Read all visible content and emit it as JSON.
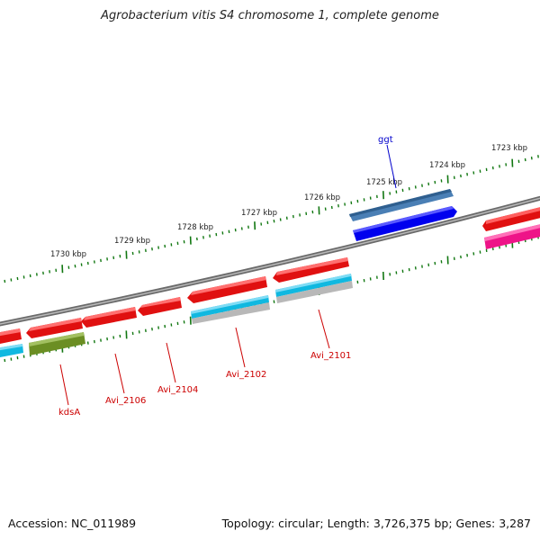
{
  "title": "Agrobacterium vitis S4 chromosome 1, complete genome",
  "footer": {
    "accession": "Accession: NC_011989",
    "summary": "Topology: circular; Length: 3,726,375 bp; Genes: 3,287"
  },
  "colors": {
    "backbone": "#808080",
    "tick": "#117711",
    "gene_forward": "#e01010",
    "gene_reverse": "#e01010",
    "label_red": "#cc0000",
    "label_blue": "#0000cc",
    "gene_blue_dark": "#0000ee",
    "gene_steel": "#4a7fb5",
    "gene_cyan": "#10b8e0",
    "gene_gray": "#b0b0b0",
    "gene_olive": "#6b8e23",
    "gene_magenta": "#ee1488"
  },
  "outer_scale": {
    "labels": [
      "1723 kbp",
      "1724 kbp",
      "1725 kbp",
      "1726 kbp",
      "1727 kbp",
      "1728 kbp",
      "1729 kbp",
      "1730 kbp"
    ]
  },
  "gene_labels": [
    "ggt",
    "kdsA",
    "Avi_2106",
    "Avi_2104",
    "Avi_2102",
    "Avi_2101"
  ]
}
